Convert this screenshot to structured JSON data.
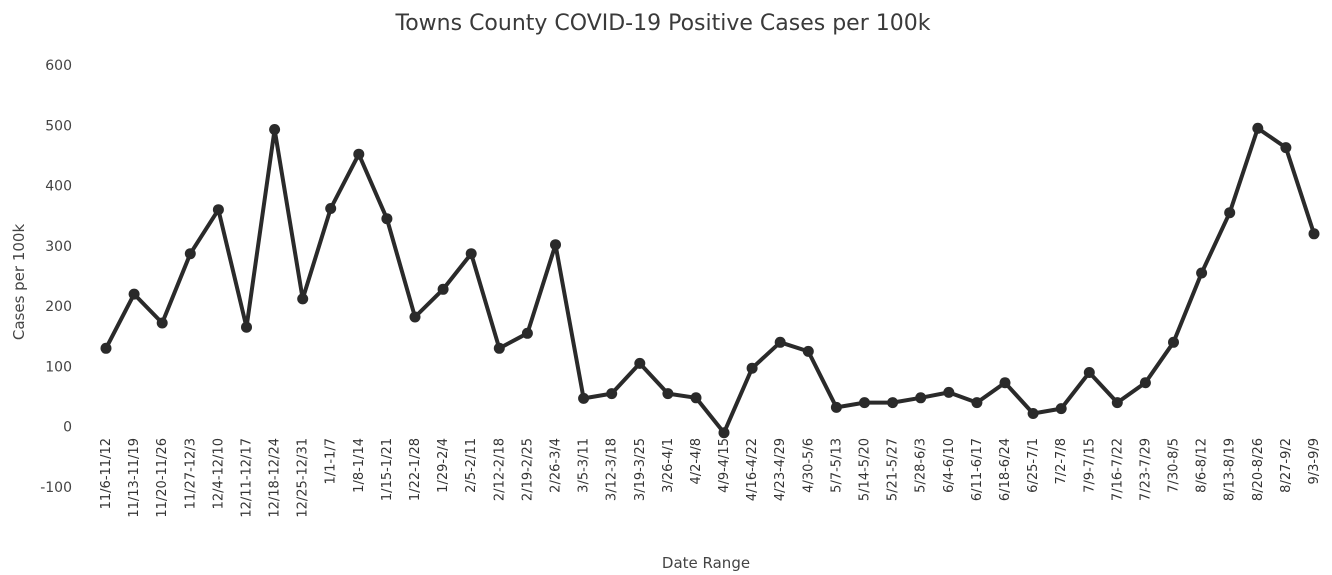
{
  "chart_data": {
    "type": "line",
    "title": "Towns County COVID-19 Positive Cases per 100k",
    "xlabel": "Date Range",
    "ylabel": "Cases per 100k",
    "ylim": [
      -100,
      600
    ],
    "yticks": [
      -100,
      0,
      100,
      200,
      300,
      400,
      500,
      600
    ],
    "grid": false,
    "legend": "none",
    "color": "#2a2a2a",
    "categories": [
      "11/6-11/12",
      "11/13-11/19",
      "11/20-11/26",
      "11/27-12/3",
      "12/4-12/10",
      "12/11-12/17",
      "12/18-12/24",
      "12/25-12/31",
      "1/1-1/7",
      "1/8-1/14",
      "1/15-1/21",
      "1/22-1/28",
      "1/29-2/4",
      "2/5-2/11",
      "2/12-2/18",
      "2/19-2/25",
      "2/26-3/4",
      "3/5-3/11",
      "3/12-3/18",
      "3/19-3/25",
      "3/26-4/1",
      "4/2-4/8",
      "4/9-4/15",
      "4/16-4/22",
      "4/23-4/29",
      "4/30-5/6",
      "5/7-5/13",
      "5/14-5/20",
      "5/21-5/27",
      "5/28-6/3",
      "6/4-6/10",
      "6/11-6/17",
      "6/18-6/24",
      "6/25-7/1",
      "7/2-7/8",
      "7/9-7/15",
      "7/16-7/22",
      "7/23-7/29",
      "7/30-8/5",
      "8/6-8/12",
      "8/13-8/19",
      "8/20-8/26",
      "8/27-9/2",
      "9/3-9/9"
    ],
    "series": [
      {
        "values": [
          130,
          220,
          172,
          287,
          360,
          165,
          493,
          212,
          362,
          452,
          345,
          182,
          228,
          287,
          130,
          155,
          302,
          47,
          55,
          105,
          55,
          48,
          -10,
          97,
          140,
          125,
          32,
          40,
          40,
          48,
          57,
          40,
          73,
          22,
          30,
          90,
          40,
          73,
          140,
          255,
          355,
          495,
          463,
          320
        ]
      }
    ]
  }
}
